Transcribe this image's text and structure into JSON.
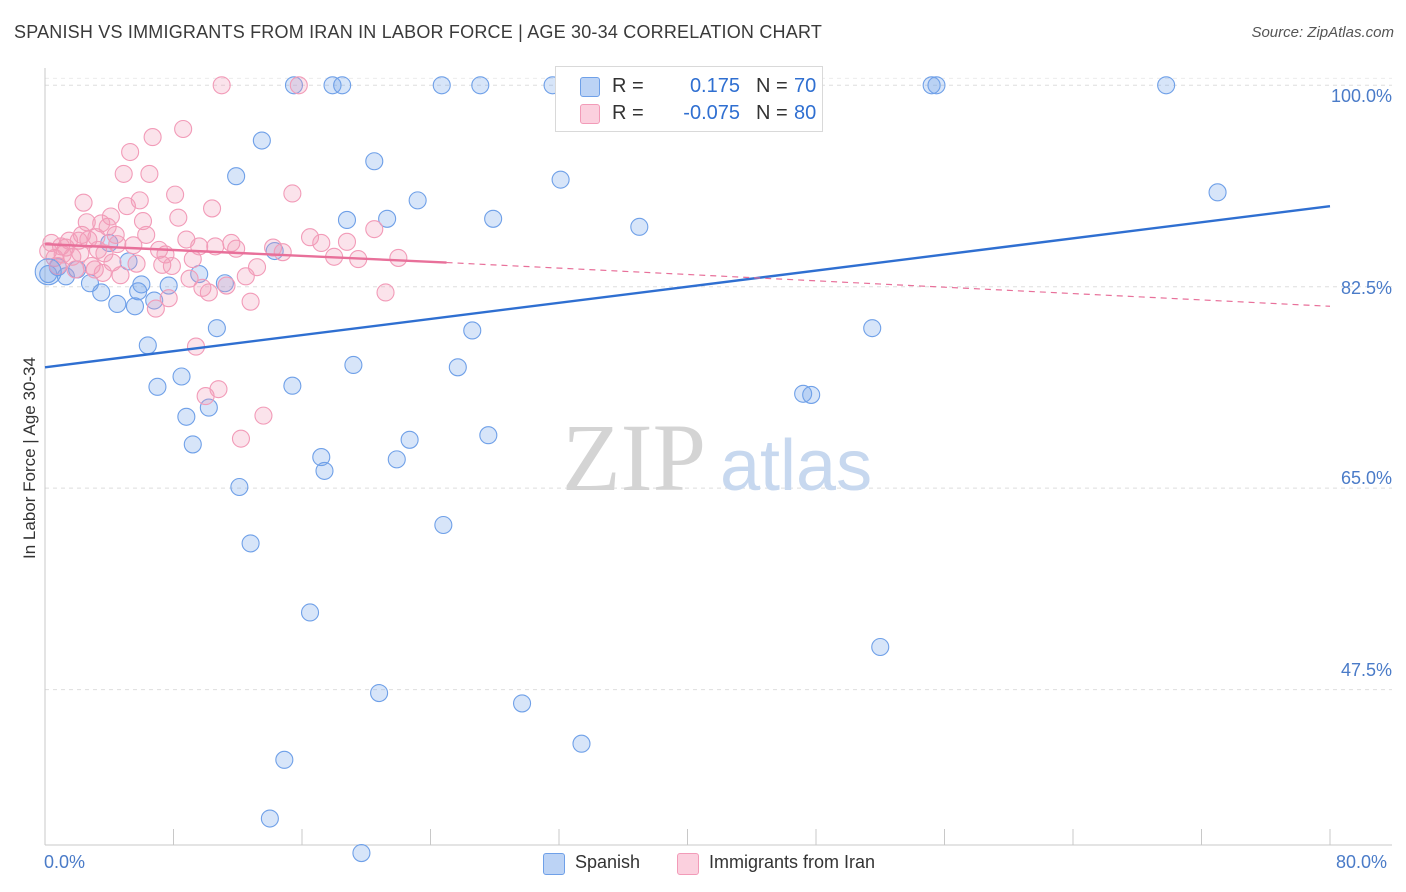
{
  "title": "SPANISH VS IMMIGRANTS FROM IRAN IN LABOR FORCE | AGE 30-34 CORRELATION CHART",
  "source": "Source: ZipAtlas.com",
  "watermark": {
    "zip": "ZIP",
    "atlas": "atlas"
  },
  "legend_top": {
    "rows": [
      {
        "r_label": "R =",
        "r_value": "0.175",
        "n_label": "N =",
        "n_value": "70",
        "color": "#6fa0e8"
      },
      {
        "r_label": "R =",
        "r_value": "-0.075",
        "n_label": "N =",
        "n_value": "80",
        "color": "#f29bb8"
      }
    ]
  },
  "legend_bottom": [
    {
      "label": "Spanish",
      "color": "#6fa0e8"
    },
    {
      "label": "Immigrants from Iran",
      "color": "#f29bb8"
    }
  ],
  "chart_data": {
    "type": "scatter",
    "xlabel": "",
    "ylabel": "In Labor Force | Age 30-34",
    "x_tick_labels": [
      "0.0%",
      "80.0%"
    ],
    "y_tick_labels": [
      "100.0%",
      "82.5%",
      "65.0%",
      "47.5%"
    ],
    "y_tick_values": [
      100,
      82.5,
      65,
      47.5
    ],
    "xlim": [
      0,
      80
    ],
    "ylim": [
      34,
      101.5
    ],
    "grid": true,
    "legend_position": "top-center",
    "series": [
      {
        "name": "Spanish",
        "color": "#6fa0e8",
        "trend": {
          "x": [
            0,
            80
          ],
          "y": [
            75.5,
            89.5
          ],
          "style": "solid",
          "color": "#2f6fd1"
        },
        "points": [
          [
            0.2,
            83.6
          ],
          [
            0.8,
            84.2
          ],
          [
            1.3,
            83.4
          ],
          [
            2.0,
            84.0
          ],
          [
            2.8,
            82.8
          ],
          [
            3.5,
            82.0
          ],
          [
            4.0,
            86.3
          ],
          [
            4.5,
            81.0
          ],
          [
            5.2,
            84.7
          ],
          [
            5.6,
            80.8
          ],
          [
            5.8,
            82.1
          ],
          [
            6.0,
            82.7
          ],
          [
            6.4,
            77.4
          ],
          [
            6.8,
            81.3
          ],
          [
            7.0,
            73.8
          ],
          [
            7.7,
            82.6
          ],
          [
            8.5,
            74.7
          ],
          [
            8.8,
            71.2
          ],
          [
            9.2,
            68.8
          ],
          [
            9.6,
            83.6
          ],
          [
            10.2,
            72.0
          ],
          [
            10.7,
            78.9
          ],
          [
            11.2,
            82.8
          ],
          [
            11.9,
            92.1
          ],
          [
            12.1,
            65.1
          ],
          [
            12.8,
            60.2
          ],
          [
            13.5,
            95.2
          ],
          [
            14.0,
            36.3
          ],
          [
            14.3,
            85.6
          ],
          [
            14.9,
            41.4
          ],
          [
            15.4,
            73.9
          ],
          [
            15.5,
            100.0
          ],
          [
            16.5,
            54.2
          ],
          [
            17.2,
            67.7
          ],
          [
            17.4,
            66.5
          ],
          [
            17.9,
            100.0
          ],
          [
            18.5,
            100.0
          ],
          [
            18.8,
            88.3
          ],
          [
            19.2,
            75.7
          ],
          [
            19.7,
            33.3
          ],
          [
            20.5,
            93.4
          ],
          [
            20.8,
            47.2
          ],
          [
            21.3,
            88.4
          ],
          [
            21.9,
            67.5
          ],
          [
            22.7,
            69.2
          ],
          [
            23.2,
            90.0
          ],
          [
            24.7,
            100.0
          ],
          [
            24.8,
            61.8
          ],
          [
            25.7,
            75.5
          ],
          [
            26.6,
            78.7
          ],
          [
            27.1,
            100.0
          ],
          [
            27.6,
            69.6
          ],
          [
            27.9,
            88.4
          ],
          [
            29.7,
            46.3
          ],
          [
            31.6,
            100.0
          ],
          [
            32.1,
            91.8
          ],
          [
            33.4,
            42.8
          ],
          [
            34.5,
            100.0
          ],
          [
            37.0,
            87.7
          ],
          [
            40.7,
            100.0
          ],
          [
            42.1,
            100.0
          ],
          [
            47.2,
            73.2
          ],
          [
            47.7,
            73.1
          ],
          [
            51.5,
            78.9
          ],
          [
            52.0,
            51.2
          ],
          [
            55.2,
            100.0
          ],
          [
            55.5,
            100.0
          ],
          [
            69.8,
            100.0
          ],
          [
            73.0,
            90.7
          ],
          [
            41.3,
            100.0
          ]
        ]
      },
      {
        "name": "Immigrants from Iran",
        "color": "#f29bb8",
        "trend": {
          "x": [
            0,
            25,
            80
          ],
          "y": [
            86.2,
            84.6,
            80.8
          ],
          "solid_until": 25,
          "color": "#e8709a"
        },
        "points": [
          [
            0.2,
            85.6
          ],
          [
            0.4,
            86.3
          ],
          [
            0.6,
            85.0
          ],
          [
            0.8,
            84.3
          ],
          [
            1.0,
            86.0
          ],
          [
            1.1,
            85.3
          ],
          [
            1.3,
            85.9
          ],
          [
            1.5,
            86.5
          ],
          [
            1.7,
            85.1
          ],
          [
            1.9,
            84.0
          ],
          [
            2.1,
            86.5
          ],
          [
            2.2,
            85.4
          ],
          [
            2.3,
            87.0
          ],
          [
            2.4,
            89.8
          ],
          [
            2.6,
            88.1
          ],
          [
            2.7,
            86.6
          ],
          [
            2.9,
            84.3
          ],
          [
            3.1,
            84.0
          ],
          [
            3.2,
            86.8
          ],
          [
            3.3,
            85.7
          ],
          [
            3.5,
            88.0
          ],
          [
            3.6,
            83.7
          ],
          [
            3.7,
            85.4
          ],
          [
            3.9,
            87.7
          ],
          [
            4.1,
            88.6
          ],
          [
            4.2,
            84.6
          ],
          [
            4.4,
            87.0
          ],
          [
            4.5,
            86.2
          ],
          [
            4.7,
            83.5
          ],
          [
            4.9,
            92.3
          ],
          [
            5.1,
            89.5
          ],
          [
            5.3,
            94.2
          ],
          [
            5.5,
            86.1
          ],
          [
            5.7,
            84.5
          ],
          [
            5.9,
            90.0
          ],
          [
            6.1,
            88.2
          ],
          [
            6.3,
            87.0
          ],
          [
            6.5,
            92.3
          ],
          [
            6.7,
            95.5
          ],
          [
            6.9,
            80.6
          ],
          [
            7.1,
            85.7
          ],
          [
            7.3,
            84.4
          ],
          [
            7.5,
            85.3
          ],
          [
            7.7,
            81.5
          ],
          [
            7.9,
            84.3
          ],
          [
            8.1,
            90.5
          ],
          [
            8.3,
            88.5
          ],
          [
            8.6,
            96.2
          ],
          [
            8.8,
            86.6
          ],
          [
            9.0,
            83.2
          ],
          [
            9.2,
            84.9
          ],
          [
            9.4,
            77.3
          ],
          [
            9.6,
            86.0
          ],
          [
            9.8,
            82.4
          ],
          [
            10.0,
            73.0
          ],
          [
            10.2,
            82.0
          ],
          [
            10.4,
            89.3
          ],
          [
            10.6,
            86.0
          ],
          [
            10.8,
            73.6
          ],
          [
            11.0,
            100.0
          ],
          [
            11.3,
            82.6
          ],
          [
            11.6,
            86.3
          ],
          [
            11.9,
            85.8
          ],
          [
            12.2,
            69.3
          ],
          [
            12.5,
            83.4
          ],
          [
            12.8,
            81.2
          ],
          [
            13.2,
            84.2
          ],
          [
            13.6,
            71.3
          ],
          [
            14.2,
            85.9
          ],
          [
            14.8,
            85.5
          ],
          [
            15.4,
            90.6
          ],
          [
            15.8,
            100.0
          ],
          [
            16.5,
            86.8
          ],
          [
            17.2,
            86.3
          ],
          [
            18.0,
            85.1
          ],
          [
            18.8,
            86.4
          ],
          [
            19.5,
            84.9
          ],
          [
            20.5,
            87.5
          ],
          [
            21.2,
            82.0
          ],
          [
            22.0,
            85.0
          ]
        ]
      }
    ]
  }
}
